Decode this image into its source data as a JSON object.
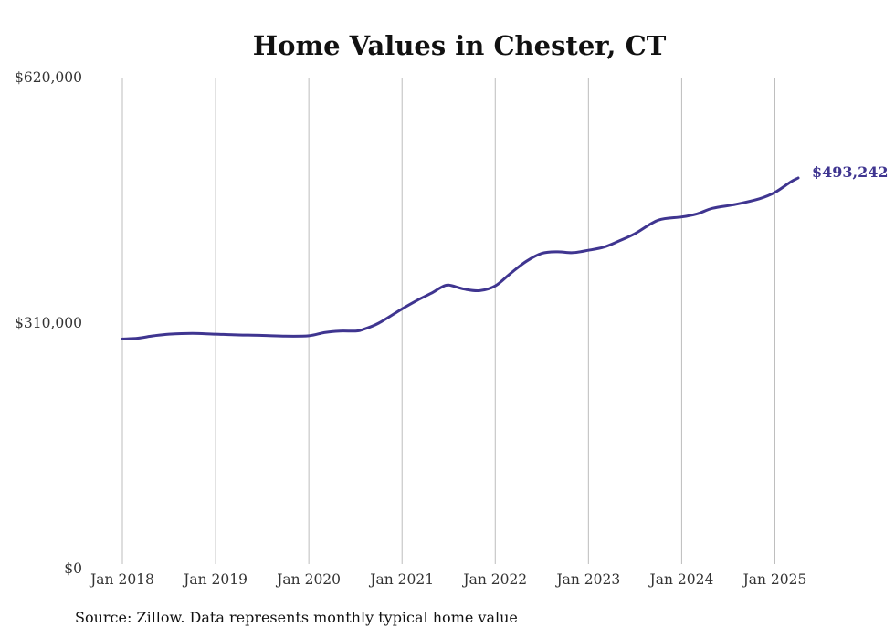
{
  "chart_data": {
    "type": "line",
    "title": "Home Values in Chester, CT",
    "xlabel": "",
    "ylabel": "",
    "x_range": [
      "2018-01",
      "2025-04"
    ],
    "ylim": [
      0,
      620000
    ],
    "y_ticks": [
      0,
      310000,
      620000
    ],
    "y_tick_labels": [
      "$0",
      "$310,000",
      "$620,000"
    ],
    "x_ticks": [
      "2018-01",
      "2019-01",
      "2020-01",
      "2021-01",
      "2022-01",
      "2023-01",
      "2024-01",
      "2025-01"
    ],
    "x_tick_labels": [
      "Jan 2018",
      "Jan 2019",
      "Jan 2020",
      "Jan 2021",
      "Jan 2022",
      "Jan 2023",
      "Jan 2024",
      "Jan 2025"
    ],
    "grid": "vertical gridlines at each January",
    "series": [
      {
        "color": "#3f3590",
        "points": [
          [
            "2018-01",
            290000
          ],
          [
            "2018-03",
            291000
          ],
          [
            "2018-05",
            294000
          ],
          [
            "2018-07",
            296000
          ],
          [
            "2018-10",
            297000
          ],
          [
            "2019-01",
            296000
          ],
          [
            "2019-04",
            295000
          ],
          [
            "2019-07",
            294500
          ],
          [
            "2019-10",
            293500
          ],
          [
            "2020-01",
            294000
          ],
          [
            "2020-03",
            298000
          ],
          [
            "2020-05",
            300000
          ],
          [
            "2020-07",
            300000
          ],
          [
            "2020-08",
            302000
          ],
          [
            "2020-10",
            310000
          ],
          [
            "2021-01",
            328000
          ],
          [
            "2021-03",
            339000
          ],
          [
            "2021-05",
            349000
          ],
          [
            "2021-06",
            355000
          ],
          [
            "2021-07",
            358000
          ],
          [
            "2021-09",
            353000
          ],
          [
            "2021-11",
            351000
          ],
          [
            "2022-01",
            357000
          ],
          [
            "2022-03",
            373000
          ],
          [
            "2022-05",
            388000
          ],
          [
            "2022-07",
            398000
          ],
          [
            "2022-09",
            400000
          ],
          [
            "2022-11",
            399000
          ],
          [
            "2023-01",
            402000
          ],
          [
            "2023-03",
            406000
          ],
          [
            "2023-05",
            414000
          ],
          [
            "2023-07",
            423000
          ],
          [
            "2023-10",
            440000
          ],
          [
            "2024-01",
            444000
          ],
          [
            "2024-03",
            448000
          ],
          [
            "2024-05",
            455000
          ],
          [
            "2024-08",
            460000
          ],
          [
            "2024-11",
            467000
          ],
          [
            "2025-01",
            475000
          ],
          [
            "2025-03",
            488000
          ],
          [
            "2025-04",
            493242
          ]
        ]
      }
    ],
    "end_label": "$493,242",
    "source": "Source: Zillow. Data represents monthly typical home value"
  }
}
